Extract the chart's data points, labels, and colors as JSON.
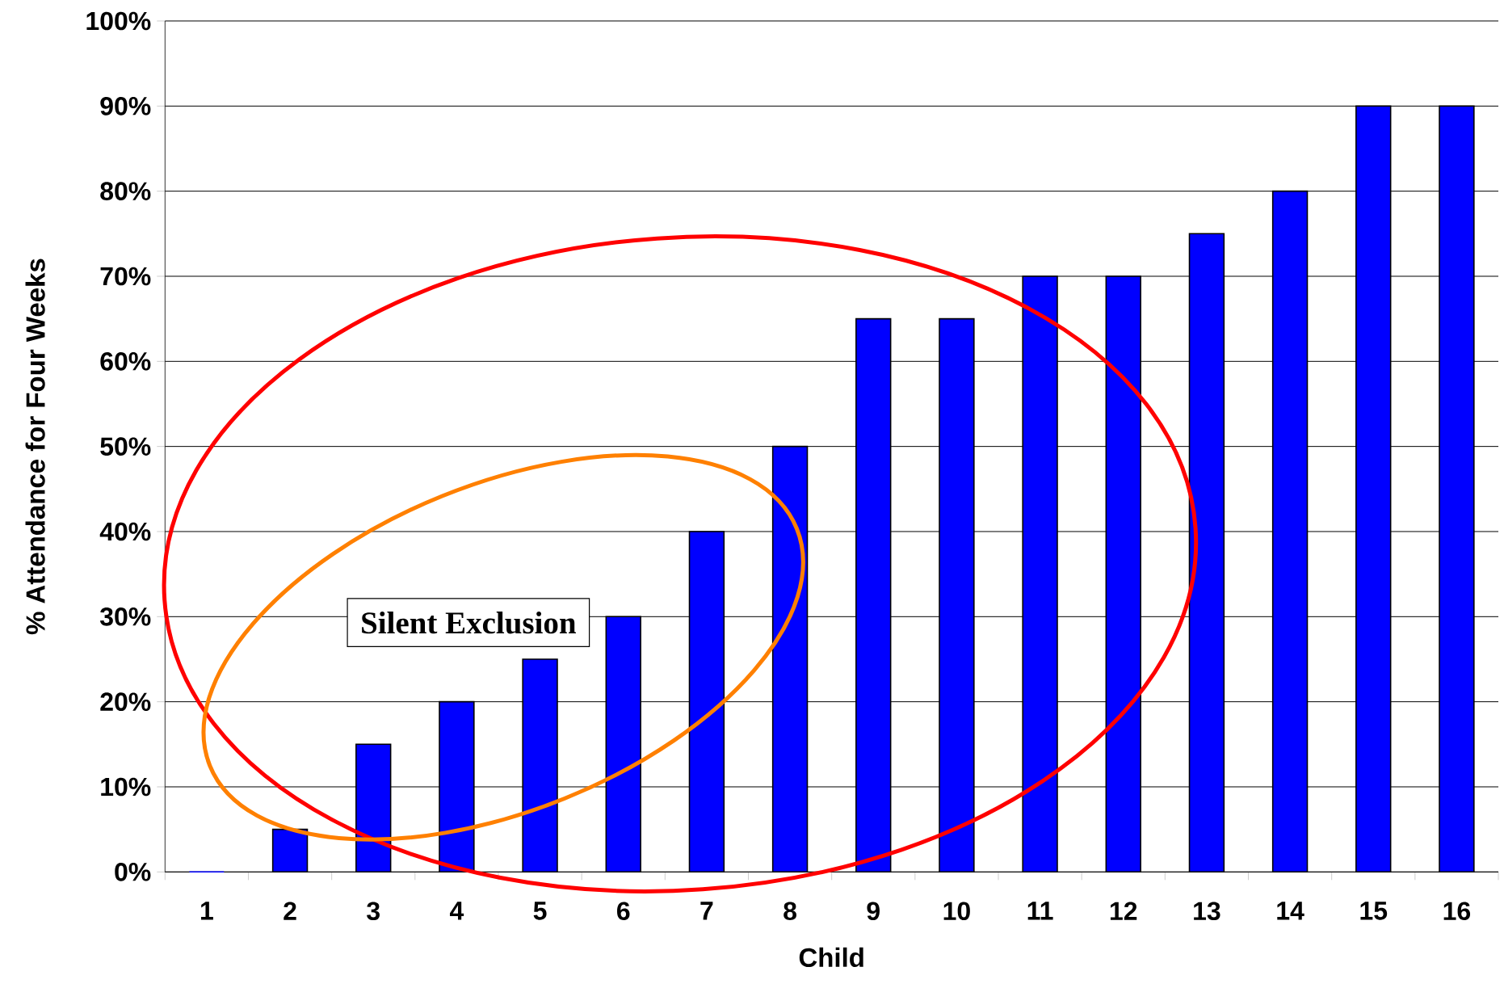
{
  "chart_data": {
    "type": "bar",
    "xlabel": "Child",
    "ylabel": "% Attendance for Four Weeks",
    "categories": [
      "1",
      "2",
      "3",
      "4",
      "5",
      "6",
      "7",
      "8",
      "9",
      "10",
      "11",
      "12",
      "13",
      "14",
      "15",
      "16"
    ],
    "values": [
      0,
      5,
      15,
      20,
      25,
      30,
      40,
      50,
      65,
      65,
      70,
      70,
      75,
      80,
      90,
      90
    ],
    "color": "#0000ff",
    "ylim": [
      0,
      100
    ],
    "yticks": [
      {
        "value": 0,
        "label": "0%"
      },
      {
        "value": 10,
        "label": "10%"
      },
      {
        "value": 20,
        "label": "20%"
      },
      {
        "value": 30,
        "label": "30%"
      },
      {
        "value": 40,
        "label": "40%"
      },
      {
        "value": 50,
        "label": "50%"
      },
      {
        "value": 60,
        "label": "60%"
      },
      {
        "value": 70,
        "label": "70%"
      },
      {
        "value": 80,
        "label": "80%"
      },
      {
        "value": 90,
        "label": "90%"
      },
      {
        "value": 100,
        "label": "100%"
      }
    ],
    "grid": "y",
    "annotations": [
      "Silent Exclusion"
    ]
  }
}
